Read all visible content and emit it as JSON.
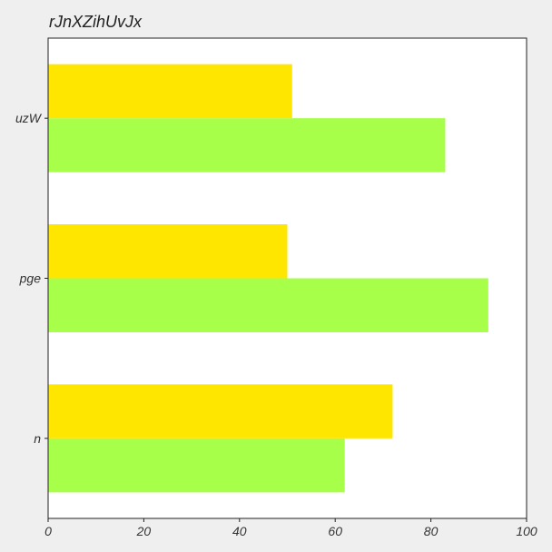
{
  "chart_data": {
    "type": "bar",
    "orientation": "horizontal",
    "title": "rJnXZihUvJx",
    "xlabel": "",
    "ylabel": "",
    "categories": [
      "n",
      "pge",
      "uzW"
    ],
    "series": [
      {
        "color": "#a8ff4a",
        "values": [
          62,
          92,
          83
        ]
      },
      {
        "color": "#ffe600",
        "values": [
          72,
          50,
          51
        ]
      }
    ],
    "xlim": [
      0,
      100
    ],
    "xticks": [
      "0",
      "20",
      "40",
      "60",
      "80",
      "100"
    ],
    "grid": false,
    "legend": "none"
  }
}
